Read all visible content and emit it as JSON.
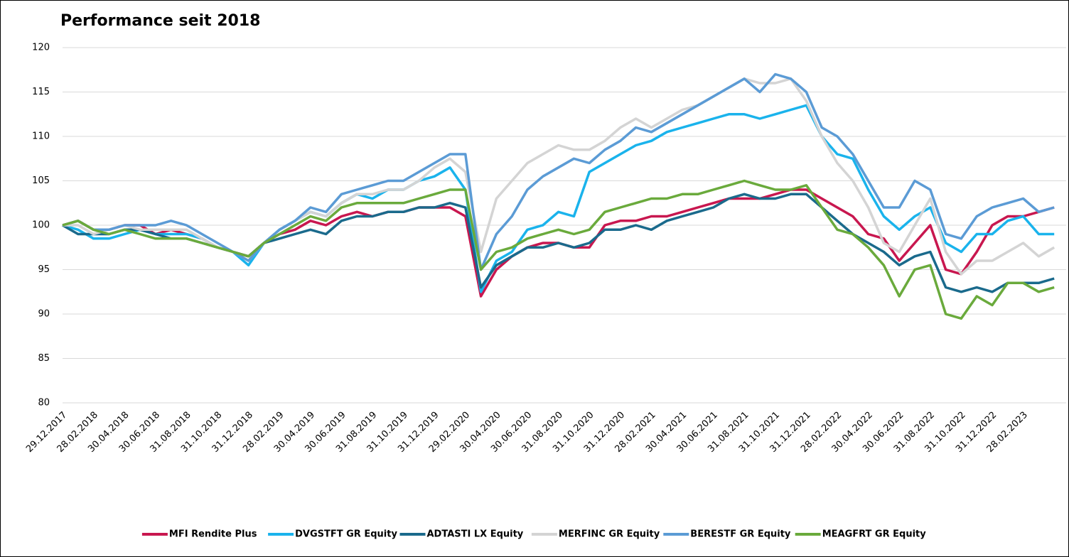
{
  "chart_data": {
    "type": "line",
    "title": "Performance seit 2018",
    "categories": [
      "29.12.2017",
      null,
      "28.02.2018",
      null,
      "30.04.2018",
      null,
      "30.06.2018",
      null,
      "31.08.2018",
      null,
      "31.10.2018",
      null,
      "31.12.2018",
      null,
      "28.02.2019",
      null,
      "30.04.2019",
      null,
      "30.06.2019",
      null,
      "31.08.2019",
      null,
      "31.10.2019",
      null,
      "31.12.2019",
      null,
      "29.02.2020",
      null,
      "30.04.2020",
      null,
      "30.06.2020",
      null,
      "31.08.2020",
      null,
      "31.10.2020",
      null,
      "31.12.2020",
      null,
      "28.02.2021",
      null,
      "30.04.2021",
      null,
      "30.06.2021",
      null,
      "31.08.2021",
      null,
      "31.10.2021",
      null,
      "31.12.2021",
      null,
      "28.02.2022",
      null,
      "30.04.2022",
      null,
      "30.06.2022",
      null,
      "31.08.2022",
      null,
      "31.10.2022",
      null,
      "31.12.2022",
      null,
      "28.02.2023",
      null,
      null
    ],
    "ylim": [
      80,
      120
    ],
    "yticks": [
      80,
      85,
      90,
      95,
      100,
      105,
      110,
      115,
      120
    ],
    "grid": true,
    "legend": "bottom",
    "series": [
      {
        "name": "MFI Rendite Plus",
        "color": "#c8174f",
        "values": [
          100,
          100.5,
          99.5,
          99.5,
          100,
          100,
          99,
          99.5,
          99,
          98.5,
          97.5,
          97,
          96.5,
          98,
          99,
          99.5,
          100.5,
          100,
          101,
          101.5,
          101,
          101.5,
          101.5,
          102,
          102,
          102,
          101,
          92,
          95,
          96.5,
          97.5,
          98,
          98,
          97.5,
          97.5,
          100,
          100.5,
          100.5,
          101,
          101,
          101.5,
          102,
          102.5,
          103,
          103,
          103,
          103.5,
          104,
          104,
          103,
          102,
          101,
          99,
          98.5,
          96,
          98,
          100,
          95,
          94.5,
          97,
          100,
          101,
          101,
          101.5,
          102
        ]
      },
      {
        "name": "DVGSTFT GR Equity",
        "color": "#1ab3ec",
        "values": [
          100,
          99.5,
          98.5,
          98.5,
          99,
          99.5,
          99,
          99,
          99,
          98.5,
          97.5,
          97,
          95.5,
          98,
          99.5,
          100.5,
          101.5,
          101,
          102.5,
          103.5,
          103,
          104,
          104,
          105,
          105.5,
          106.5,
          104,
          92.5,
          96,
          97,
          99.5,
          100,
          101.5,
          101,
          106,
          107,
          108,
          109,
          109.5,
          110.5,
          111,
          111.5,
          112,
          112.5,
          112.5,
          112,
          112.5,
          113,
          113.5,
          110,
          108,
          107.5,
          104,
          101,
          99.5,
          101,
          102,
          98,
          97,
          99,
          99,
          100.5,
          101,
          99,
          99
        ]
      },
      {
        "name": "ADTASTI LX Equity",
        "color": "#1a6a8c",
        "values": [
          100,
          99,
          99,
          99,
          99.5,
          99.5,
          99,
          98.5,
          98.5,
          98,
          97.5,
          97,
          96.5,
          98,
          98.5,
          99,
          99.5,
          99,
          100.5,
          101,
          101,
          101.5,
          101.5,
          102,
          102,
          102.5,
          102,
          93,
          95.5,
          96.5,
          97.5,
          97.5,
          98,
          97.5,
          98,
          99.5,
          99.5,
          100,
          99.5,
          100.5,
          101,
          101.5,
          102,
          103,
          103.5,
          103,
          103,
          103.5,
          103.5,
          102,
          100.5,
          99,
          98,
          97,
          95.5,
          96.5,
          97,
          93,
          92.5,
          93,
          92.5,
          93.5,
          93.5,
          93.5,
          94
        ]
      },
      {
        "name": "MERFINC GR Equity",
        "color": "#d4d4d4",
        "values": [
          100,
          100,
          99,
          99.5,
          100,
          99.5,
          99.5,
          99.5,
          99.5,
          98.5,
          97.5,
          97,
          96,
          98,
          99.5,
          100.5,
          101.5,
          101,
          102.5,
          103.5,
          103.5,
          104,
          104,
          105,
          106.5,
          107.5,
          106,
          97,
          103,
          105,
          107,
          108,
          109,
          108.5,
          108.5,
          109.5,
          111,
          112,
          111,
          112,
          113,
          113.5,
          114.5,
          115.5,
          116.5,
          116,
          116,
          116.5,
          114,
          110,
          107,
          105,
          102,
          98,
          97,
          100,
          103,
          97,
          94.5,
          96,
          96,
          97,
          98,
          96.5,
          97.5
        ]
      },
      {
        "name": "BERESTF GR Equity",
        "color": "#5b9bd5",
        "values": [
          100,
          100.5,
          99.5,
          99.5,
          100,
          100,
          100,
          100.5,
          100,
          99,
          98,
          97,
          96,
          98,
          99.5,
          100.5,
          102,
          101.5,
          103.5,
          104,
          104.5,
          105,
          105,
          106,
          107,
          108,
          108,
          95,
          99,
          101,
          104,
          105.5,
          106.5,
          107.5,
          107,
          108.5,
          109.5,
          111,
          110.5,
          111.5,
          112.5,
          113.5,
          114.5,
          115.5,
          116.5,
          115,
          117,
          116.5,
          115,
          111,
          110,
          108,
          105,
          102,
          102,
          105,
          104,
          99,
          98.5,
          101,
          102,
          102.5,
          103,
          101.5,
          102
        ]
      },
      {
        "name": "MEAGFRT GR Equity",
        "color": "#6aaa3c",
        "values": [
          100,
          100.5,
          99.5,
          99,
          99.5,
          99,
          98.5,
          98.5,
          98.5,
          98,
          97.5,
          97,
          96.5,
          98,
          99,
          100,
          101,
          100.5,
          102,
          102.5,
          102.5,
          102.5,
          102.5,
          103,
          103.5,
          104,
          104,
          95,
          97,
          97.5,
          98.5,
          99,
          99.5,
          99,
          99.5,
          101.5,
          102,
          102.5,
          103,
          103,
          103.5,
          103.5,
          104,
          104.5,
          105,
          104.5,
          104,
          104,
          104.5,
          102,
          99.5,
          99,
          97.5,
          95.5,
          92,
          95,
          95.5,
          90,
          89.5,
          92,
          91,
          93.5,
          93.5,
          92.5,
          93
        ]
      }
    ]
  }
}
